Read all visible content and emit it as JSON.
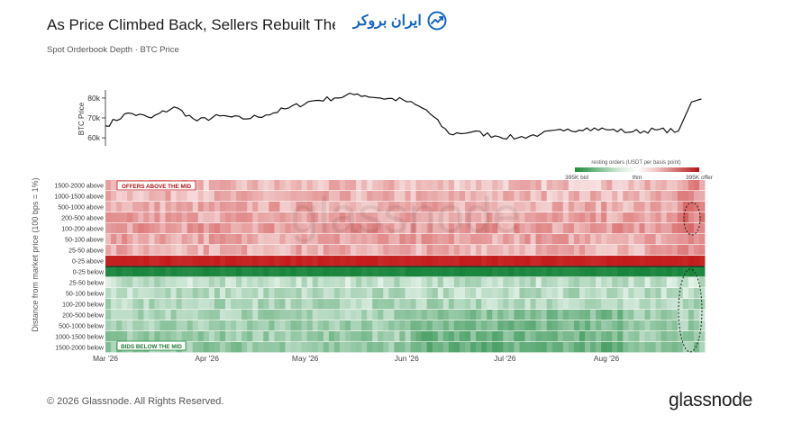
{
  "header": {
    "title": "As Price Climbed Back, Sellers Rebuilt The",
    "subtitle": "Spot Orderbook Depth · BTC Price",
    "partner_logo_text": "ایران بروکر"
  },
  "footer": {
    "copyright": "© 2026 Glassnode. All Rights Reserved.",
    "brand": "glassnode"
  },
  "watermark": "glassnode",
  "colors": {
    "offer": "#c81f1f",
    "bid": "#1e8a3c",
    "offer_pale": "#f6dcdc",
    "bid_pale": "#dff0e3",
    "price_line": "#111111",
    "partner_blue": "#1565c0"
  },
  "chart_data": [
    {
      "type": "line",
      "ylabel": "BTC Price",
      "yticks": [
        "80k",
        "70k",
        "60k"
      ],
      "ylim": [
        56000,
        84000
      ],
      "x": [
        "2026-03-01",
        "2026-03-08",
        "2026-03-15",
        "2026-03-22",
        "2026-03-29",
        "2026-04-05",
        "2026-04-12",
        "2026-04-19",
        "2026-04-26",
        "2026-05-03",
        "2026-05-10",
        "2026-05-17",
        "2026-05-24",
        "2026-05-31",
        "2026-06-07",
        "2026-06-14",
        "2026-06-21",
        "2026-06-28",
        "2026-07-05",
        "2026-07-12",
        "2026-07-19",
        "2026-07-26",
        "2026-08-02",
        "2026-08-09",
        "2026-08-16",
        "2026-08-23",
        "2026-08-27",
        "2026-08-30"
      ],
      "series": [
        {
          "values": [
            66000,
            72500,
            70000,
            75500,
            68500,
            71000,
            69500,
            71500,
            75000,
            78500,
            80000,
            82000,
            80000,
            79000,
            74000,
            62000,
            63000,
            61000,
            60000,
            62000,
            63500,
            65000,
            64000,
            63000,
            64000,
            63500,
            78000,
            79500
          ]
        }
      ]
    },
    {
      "type": "heatmap",
      "ylabel": "Distance from market price (100 bps = 1%)",
      "x_labels": [
        "Mar '26",
        "Apr '26",
        "May '26",
        "Jun '26",
        "Jul '26",
        "Aug '26"
      ],
      "rows": [
        "1500-2000 above",
        "1000-1500 above",
        "500-1000 above",
        "200-500 above",
        "100-200 above",
        "50-100 above",
        "25-50 above",
        "0-25 above",
        "0-25 below",
        "25-50 below",
        "50-100 below",
        "100-200 below",
        "200-500 below",
        "500-1000 below",
        "1000-1500 below",
        "1500-2000 below"
      ],
      "annotations": [
        "OFFERS ABOVE THE MID",
        "BIDS BELOW THE MID"
      ],
      "color_scale": {
        "title": "resting orders (USDT per basis point)",
        "labels": [
          "395K bid",
          "thin",
          "395K offer"
        ]
      }
    }
  ]
}
